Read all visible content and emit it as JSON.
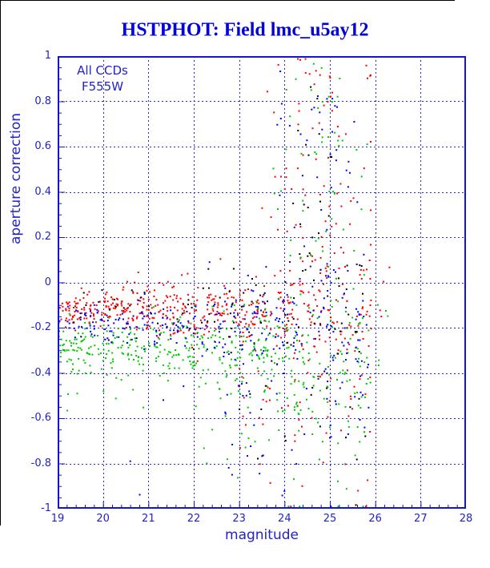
{
  "window": {
    "border_color": "#000000"
  },
  "title": {
    "text": "HSTPHOT: Field lmc_u5ay12",
    "color": "#0000db"
  },
  "annotations": {
    "line1": "All CCDs",
    "line2": "F555W"
  },
  "axis_titles": {
    "x": "magnitude",
    "y": "aperture correction"
  },
  "colors": {
    "frame_blue": "#1515c3",
    "grid_blue": "#2a2ad6",
    "label_blue": "#2222cc",
    "point_red": "#ff0000",
    "point_green": "#00c800",
    "point_blue": "#0000ff",
    "point_black": "#000000"
  },
  "chart_data": {
    "type": "scatter",
    "title": "HSTPHOT: Field lmc_u5ay12",
    "xlabel": "magnitude",
    "ylabel": "aperture correction",
    "xlim": [
      19,
      28
    ],
    "ylim": [
      -1,
      1
    ],
    "x_ticks": [
      "19",
      "20",
      "21",
      "22",
      "23",
      "24",
      "25",
      "26",
      "27",
      "28"
    ],
    "y_ticks": [
      "1",
      "0.8",
      "0.6",
      "0.4",
      "0.2",
      "0",
      "-0.2",
      "-0.4",
      "-0.6",
      "-0.8",
      "-1"
    ],
    "x_minor_step": 0.2,
    "y_minor_step": 0.05,
    "grid": "dashed blue lines at every major tick, frame solid blue, ticks inward on left and bottom axes",
    "legend_position": "top-left inside plot (text annotations: All CCDs / F555W)",
    "marker": "2px filled squares",
    "point_size": 2,
    "sampling_note": "Dense scatter (~1700 unlabeled points) summarized as statistical clusters; points are regenerated deterministically from these parameters. Bright stars (mag 19-23.5) form tight horizontal bands per CCD color near aperture correction -0.1 to -0.3; faint stars (mag 23.5-26) fan out over the full -1 to +1 range with a vertical plume near mag 24.5-25.2; essentially no data beyond mag 26.4.",
    "series": [
      {
        "name": "series-red",
        "color": "#ff0000",
        "approx_count": 631,
        "clusters": [
          {
            "n": 400,
            "x": [
              19.0,
              24.2
            ],
            "ydist": "gauss",
            "y0": -0.125,
            "s0": 0.032,
            "s1": 0.011
          },
          {
            "n": 110,
            "x": [
              24.2,
              25.9
            ],
            "ydist": "gauss",
            "y0": -0.14,
            "s0": 0.16,
            "s1": 0
          },
          {
            "n": 70,
            "x": [
              23.2,
              25.9
            ],
            "xdist": "gauss",
            "xmu": 24.7,
            "xs": 0.6,
            "ydist": "uniform",
            "y": [
              0.02,
              1.0
            ]
          },
          {
            "n": 45,
            "x": [
              23.0,
              25.9
            ],
            "ydist": "halfdown",
            "y0": -0.38,
            "s0": 0.27
          },
          {
            "n": 6,
            "x": [
              25.9,
              26.35
            ],
            "ydist": "gauss",
            "y0": -0.12,
            "s0": 0.22,
            "s1": 0
          }
        ]
      },
      {
        "name": "series-green",
        "color": "#00c800",
        "approx_count": 543,
        "clusters": [
          {
            "n": 320,
            "x": [
              19.0,
              24.2
            ],
            "ydist": "gauss",
            "y0": -0.285,
            "s0": 0.045,
            "s1": 0.011
          },
          {
            "n": 90,
            "x": [
              24.2,
              25.9
            ],
            "ydist": "gauss",
            "y0": -0.3,
            "s0": 0.15,
            "s1": 0
          },
          {
            "n": 50,
            "x": [
              23.3,
              25.9
            ],
            "xdist": "gauss",
            "xmu": 24.75,
            "xs": 0.6,
            "ydist": "uniform",
            "y": [
              0.0,
              0.97
            ]
          },
          {
            "n": 60,
            "x": [
              22.0,
              25.9
            ],
            "ydist": "halfdown",
            "y0": -0.42,
            "s0": 0.28
          },
          {
            "n": 18,
            "x": [
              19.2,
              22.0
            ],
            "ydist": "halfdown",
            "y0": -0.37,
            "s0": 0.09
          },
          {
            "n": 5,
            "x": [
              25.9,
              26.3
            ],
            "ydist": "gauss",
            "y0": -0.3,
            "s0": 0.18,
            "s1": 0
          }
        ]
      },
      {
        "name": "series-blue",
        "color": "#0000ff",
        "approx_count": 359,
        "clusters": [
          {
            "n": 205,
            "x": [
              19.0,
              24.2
            ],
            "ydist": "gauss",
            "y0": -0.185,
            "s0": 0.04,
            "s1": 0.011
          },
          {
            "n": 70,
            "x": [
              24.2,
              25.9
            ],
            "ydist": "gauss",
            "y0": -0.2,
            "s0": 0.16,
            "s1": 0
          },
          {
            "n": 42,
            "x": [
              23.3,
              25.85
            ],
            "xdist": "gauss",
            "xmu": 24.7,
            "xs": 0.6,
            "ydist": "uniform",
            "y": [
              0.0,
              0.95
            ]
          },
          {
            "n": 38,
            "x": [
              22.5,
              25.9
            ],
            "ydist": "halfdown",
            "y0": -0.4,
            "s0": 0.29
          },
          {
            "n": 4,
            "x": [
              20.5,
              22.8
            ],
            "ydist": "uniform",
            "y": [
              -0.95,
              -0.45
            ]
          }
        ]
      },
      {
        "name": "series-black",
        "color": "#000000",
        "approx_count": 132,
        "clusters": [
          {
            "n": 68,
            "x": [
              19.3,
              24.2
            ],
            "ydist": "gauss",
            "y0": -0.14,
            "s0": 0.05,
            "s1": 0.011
          },
          {
            "n": 28,
            "x": [
              24.2,
              25.8
            ],
            "ydist": "gauss",
            "y0": -0.15,
            "s0": 0.17,
            "s1": 0
          },
          {
            "n": 20,
            "x": [
              23.4,
              25.7
            ],
            "xdist": "gauss",
            "xmu": 24.7,
            "xs": 0.55,
            "ydist": "uniform",
            "y": [
              0.05,
              0.95
            ]
          },
          {
            "n": 16,
            "x": [
              23.0,
              25.8
            ],
            "ydist": "halfdown",
            "y0": -0.45,
            "s0": 0.26
          }
        ]
      }
    ]
  }
}
